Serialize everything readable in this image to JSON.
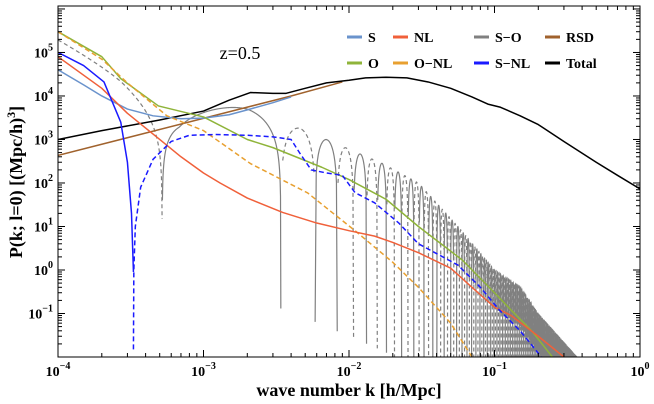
{
  "chart_data": {
    "type": "line",
    "xlabel": "wave number k [h/Mpc]",
    "ylabel": {
      "text": "P(k; l=0) [(Mpc/h)",
      "sup": "3",
      "close": "]"
    },
    "annotation": "z=0.5",
    "xscale": "log",
    "yscale": "log",
    "xlim": [
      0.0001,
      1
    ],
    "ylim": [
      0.01,
      1170000
    ],
    "grid": false,
    "legend_position": "top-right",
    "x_ticks": [
      {
        "base": "10",
        "exp": "-4",
        "value": 0.0001
      },
      {
        "base": "10",
        "exp": "-3",
        "value": 0.001
      },
      {
        "base": "10",
        "exp": "-2",
        "value": 0.01
      },
      {
        "base": "10",
        "exp": "-1",
        "value": 0.1
      },
      {
        "base": "10",
        "exp": "0",
        "value": 1
      }
    ],
    "y_ticks": [
      {
        "base": "10",
        "exp": "5",
        "value": 100000
      },
      {
        "base": "10",
        "exp": "4",
        "value": 10000
      },
      {
        "base": "10",
        "exp": "3",
        "value": 1000
      },
      {
        "base": "10",
        "exp": "2",
        "value": 100
      },
      {
        "base": "10",
        "exp": "1",
        "value": 10
      },
      {
        "base": "10",
        "exp": "0",
        "value": 1
      },
      {
        "base": "10",
        "exp": "-1",
        "value": 0.1
      }
    ],
    "series": [
      {
        "name": "RSD",
        "color": "#a0622d",
        "segments": [
          {
            "style": "solid",
            "points": [
              [
                0.0001,
                430
              ],
              [
                0.004,
                10000
              ],
              [
                0.009,
                21000
              ]
            ]
          }
        ]
      },
      {
        "name": "Total",
        "color": "#000000",
        "segments": [
          {
            "style": "solid",
            "points": [
              [
                0.0001,
                1000
              ],
              [
                0.0002,
                1600
              ],
              [
                0.0005,
                2800
              ],
              [
                0.001,
                4500
              ],
              [
                0.0015,
                8000
              ],
              [
                0.0021,
                12000
              ],
              [
                0.003,
                11500
              ],
              [
                0.0037,
                11500
              ],
              [
                0.005,
                15000
              ],
              [
                0.007,
                20000
              ],
              [
                0.01,
                23000
              ],
              [
                0.013,
                26000
              ],
              [
                0.018,
                27000
              ],
              [
                0.025,
                26000
              ],
              [
                0.035,
                21000
              ],
              [
                0.05,
                15000
              ],
              [
                0.07,
                9500
              ],
              [
                0.09,
                6500
              ],
              [
                0.11,
                5500
              ],
              [
                0.15,
                3500
              ],
              [
                0.2,
                2200
              ],
              [
                0.3,
                900
              ],
              [
                0.5,
                300
              ],
              [
                0.7,
                150
              ],
              [
                1,
                73
              ]
            ]
          }
        ]
      },
      {
        "name": "S",
        "color": "#6a93cc",
        "segments": [
          {
            "style": "solid",
            "points": [
              [
                0.0001,
                40000
              ],
              [
                0.00015,
                18000
              ],
              [
                0.0002,
                10000
              ],
              [
                0.0003,
                5000
              ],
              [
                0.00045,
                3500
              ],
              [
                0.0007,
                3000
              ],
              [
                0.001,
                3100
              ],
              [
                0.0015,
                3700
              ],
              [
                0.002,
                4800
              ],
              [
                0.003,
                7000
              ],
              [
                0.004,
                9500
              ]
            ]
          }
        ]
      },
      {
        "name": "O",
        "color": "#8fb43a",
        "segments": [
          {
            "style": "solid",
            "points": [
              [
                0.0001,
                300000
              ],
              [
                0.0002,
                80000
              ],
              [
                0.00027,
                25000
              ],
              [
                0.00049,
                5900
              ],
              [
                0.001,
                3300
              ],
              [
                0.002,
                1000
              ],
              [
                0.003,
                650
              ],
              [
                0.0065,
                230
              ],
              [
                0.01,
                120
              ],
              [
                0.018,
                42
              ],
              [
                0.03,
                10
              ],
              [
                0.06,
                1.7
              ],
              [
                0.1,
                0.3
              ],
              [
                0.13,
                0.12
              ],
              [
                0.18,
                0.04
              ],
              [
                0.25,
                0.01
              ]
            ]
          }
        ]
      },
      {
        "name": "O−NL",
        "color": "#e8a030",
        "segments": [
          {
            "style": "dashed",
            "points": [
              [
                0.0001,
                300000
              ],
              [
                0.0002,
                70000
              ],
              [
                0.0003,
                20000
              ],
              [
                0.00056,
                3500
              ],
              [
                0.001,
                1600
              ],
              [
                0.0021,
                280
              ],
              [
                0.0052,
                59
              ],
              [
                0.011,
                8
              ],
              [
                0.02,
                1.5
              ],
              [
                0.03,
                0.4
              ],
              [
                0.05,
                0.06
              ],
              [
                0.07,
                0.01
              ]
            ]
          }
        ]
      },
      {
        "name": "NL",
        "color": "#f0603a",
        "segments": [
          {
            "style": "solid",
            "points": [
              [
                0.0001,
                80000
              ],
              [
                0.0002,
                15000
              ],
              [
                0.0003,
                4000
              ],
              [
                0.0005,
                1000
              ],
              [
                0.0007,
                400
              ],
              [
                0.001,
                170
              ],
              [
                0.0013,
                100
              ],
              [
                0.002,
                45
              ],
              [
                0.0035,
                21
              ],
              [
                0.006,
                12
              ],
              [
                0.01,
                8
              ],
              [
                0.015,
                6
              ],
              [
                0.02,
                4.3
              ],
              [
                0.03,
                2.5
              ],
              [
                0.05,
                1.1
              ],
              [
                0.07,
                0.4
              ],
              [
                0.1,
                0.14
              ],
              [
                0.13,
                0.09
              ],
              [
                0.2,
                0.03
              ],
              [
                0.3,
                0.01
              ]
            ]
          }
        ]
      },
      {
        "name": "S−NL",
        "color": "#1a1aff",
        "segments": [
          {
            "style": "solid",
            "points": [
              [
                0.0001,
                100000
              ],
              [
                0.00015,
                50000
              ],
              [
                0.000207,
                21000
              ],
              [
                0.00027,
                2500
              ],
              [
                0.0003,
                300
              ],
              [
                0.00032,
                20
              ],
              [
                0.00033,
                0.9
              ]
            ]
          },
          {
            "style": "dashed",
            "points": [
              [
                0.00033,
                0.015
              ],
              [
                0.000332,
                1
              ],
              [
                0.00034,
                10
              ],
              [
                0.00037,
                80
              ],
              [
                0.00045,
                350
              ],
              [
                0.0006,
                900
              ],
              [
                0.0008,
                1250
              ],
              [
                0.0012,
                1300
              ],
              [
                0.002,
                1250
              ],
              [
                0.003,
                1150
              ],
              [
                0.004,
                1000
              ],
              [
                0.0046,
                480
              ],
              [
                0.0055,
                200
              ],
              [
                0.007,
                170
              ],
              [
                0.009,
                150
              ],
              [
                0.011,
                60
              ],
              [
                0.015,
                35
              ],
              [
                0.022,
                12
              ],
              [
                0.03,
                4
              ],
              [
                0.056,
                1.3
              ],
              [
                0.08,
                0.4
              ],
              [
                0.108,
                0.12
              ],
              [
                0.15,
                0.04
              ],
              [
                0.21,
                0.01
              ]
            ]
          }
        ]
      }
    ],
    "oscillating_series": {
      "name": "S−O",
      "color": "#808080",
      "positive_style": "dashed",
      "negative_style": "solid",
      "envelope": [
        [
          0.0001,
          440000
        ],
        [
          0.00027,
          80000
        ],
        [
          0.00068,
          11000
        ],
        [
          0.002,
          5000
        ],
        [
          0.0046,
          1800
        ],
        [
          0.007,
          1000
        ],
        [
          0.01,
          600
        ],
        [
          0.017,
          280
        ],
        [
          0.03,
          100
        ],
        [
          0.056,
          10
        ],
        [
          0.1,
          1
        ],
        [
          0.15,
          0.4
        ],
        [
          0.2,
          0.1
        ],
        [
          0.37,
          0.01
        ]
      ],
      "zeros": [
        0.00052,
        0.0034
      ],
      "zero_spacing": 0.00245,
      "k_max": 0.37
    },
    "legend": [
      {
        "label": "S",
        "color": "#6a93cc"
      },
      {
        "label": "NL",
        "color": "#f0603a"
      },
      {
        "label": "S−O",
        "color": "#808080"
      },
      {
        "label": "RSD",
        "color": "#a0622d"
      },
      {
        "label": "O",
        "color": "#8fb43a"
      },
      {
        "label": "O−NL",
        "color": "#e8a030"
      },
      {
        "label": "S−NL",
        "color": "#1a1aff"
      },
      {
        "label": "Total",
        "color": "#000000"
      }
    ]
  }
}
